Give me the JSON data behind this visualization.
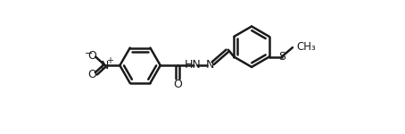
{
  "background_color": "#ffffff",
  "line_color": "#1a1a1a",
  "line_width": 1.8,
  "text_color": "#1a1a1a",
  "font_size": 9,
  "r_ring": 0.26,
  "xlim": [
    -1.35,
    3.15
  ],
  "ylim": [
    -0.25,
    1.45
  ],
  "figsize": [
    4.54,
    1.5
  ],
  "dpi": 100
}
